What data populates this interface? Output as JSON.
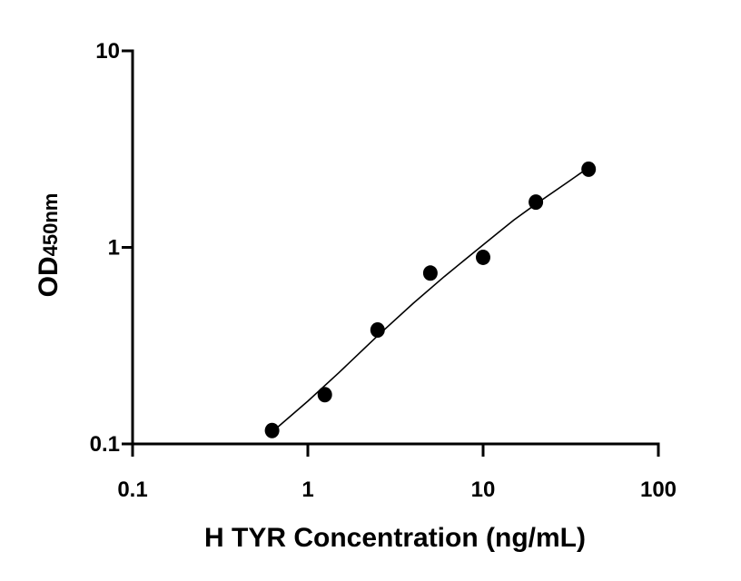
{
  "chart_data": {
    "type": "scatter",
    "xlabel": "H TYR Concentration (ng/mL)",
    "ylabel_main": "OD",
    "ylabel_sub": "450nm",
    "x_scale": "log",
    "y_scale": "log",
    "xlim": [
      0.1,
      100
    ],
    "ylim": [
      0.1,
      10
    ],
    "x_ticks": [
      0.1,
      1,
      10,
      100
    ],
    "x_tick_labels": [
      "0.1",
      "1",
      "10",
      "100"
    ],
    "y_ticks": [
      0.1,
      1,
      10
    ],
    "y_tick_labels": [
      "0.1",
      "1",
      "10"
    ],
    "grid": false,
    "series": [
      {
        "x": [
          0.625,
          1.25,
          2.5,
          5,
          10,
          20,
          40
        ],
        "y": [
          0.117,
          0.178,
          0.38,
          0.74,
          0.89,
          1.7,
          2.5
        ]
      }
    ],
    "fit_curve": {
      "x": [
        0.625,
        1.0,
        1.5,
        2.5,
        4.0,
        6.0,
        10,
        15,
        20,
        30,
        40
      ],
      "y": [
        0.115,
        0.165,
        0.23,
        0.355,
        0.52,
        0.71,
        1.03,
        1.38,
        1.66,
        2.13,
        2.55
      ]
    },
    "colors": {
      "marker": "#000000",
      "line": "#000000",
      "axis": "#000000"
    }
  }
}
